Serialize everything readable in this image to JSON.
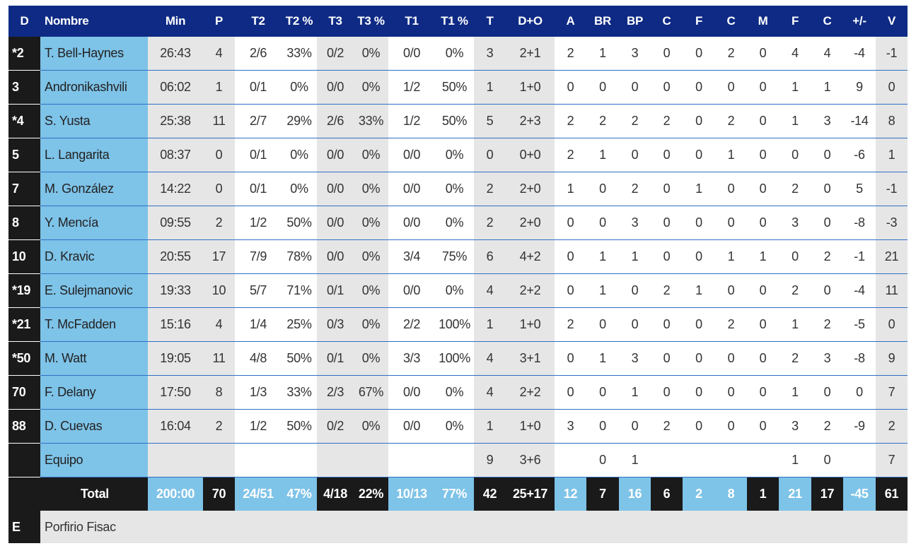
{
  "headers": [
    "D",
    "Nombre",
    "Min",
    "P",
    "T2",
    "T2 %",
    "T3",
    "T3 %",
    "T1",
    "T1 %",
    "T",
    "D+O",
    "A",
    "BR",
    "BP",
    "C",
    "F",
    "C",
    "M",
    "F",
    "C",
    "+/-",
    "V"
  ],
  "players": [
    [
      "*2",
      "T. Bell-Haynes",
      "26:43",
      "4",
      "2/6",
      "33%",
      "0/2",
      "0%",
      "0/0",
      "0%",
      "3",
      "2+1",
      "2",
      "1",
      "3",
      "0",
      "0",
      "2",
      "0",
      "4",
      "4",
      "-4",
      "-1"
    ],
    [
      "3",
      "Andronikashvili",
      "06:02",
      "1",
      "0/1",
      "0%",
      "0/0",
      "0%",
      "1/2",
      "50%",
      "1",
      "1+0",
      "0",
      "0",
      "0",
      "0",
      "0",
      "0",
      "0",
      "1",
      "1",
      "9",
      "0"
    ],
    [
      "*4",
      "S. Yusta",
      "25:38",
      "11",
      "2/7",
      "29%",
      "2/6",
      "33%",
      "1/2",
      "50%",
      "5",
      "2+3",
      "2",
      "2",
      "2",
      "2",
      "0",
      "2",
      "0",
      "1",
      "3",
      "-14",
      "8"
    ],
    [
      "5",
      "L. Langarita",
      "08:37",
      "0",
      "0/1",
      "0%",
      "0/0",
      "0%",
      "0/0",
      "0%",
      "0",
      "0+0",
      "2",
      "1",
      "0",
      "0",
      "0",
      "1",
      "0",
      "0",
      "0",
      "-6",
      "1"
    ],
    [
      "7",
      "M. González",
      "14:22",
      "0",
      "0/1",
      "0%",
      "0/0",
      "0%",
      "0/0",
      "0%",
      "2",
      "2+0",
      "1",
      "0",
      "2",
      "0",
      "1",
      "0",
      "0",
      "2",
      "0",
      "5",
      "-1"
    ],
    [
      "8",
      "Y. Mencía",
      "09:55",
      "2",
      "1/2",
      "50%",
      "0/0",
      "0%",
      "0/0",
      "0%",
      "2",
      "2+0",
      "0",
      "0",
      "3",
      "0",
      "0",
      "0",
      "0",
      "3",
      "0",
      "-8",
      "-3"
    ],
    [
      "10",
      "D. Kravic",
      "20:55",
      "17",
      "7/9",
      "78%",
      "0/0",
      "0%",
      "3/4",
      "75%",
      "6",
      "4+2",
      "0",
      "1",
      "1",
      "0",
      "0",
      "1",
      "1",
      "0",
      "2",
      "-1",
      "21"
    ],
    [
      "*19",
      "E. Sulejmanovic",
      "19:33",
      "10",
      "5/7",
      "71%",
      "0/1",
      "0%",
      "0/0",
      "0%",
      "4",
      "2+2",
      "0",
      "1",
      "0",
      "2",
      "1",
      "0",
      "0",
      "2",
      "0",
      "-4",
      "11"
    ],
    [
      "*21",
      "T. McFadden",
      "15:16",
      "4",
      "1/4",
      "25%",
      "0/3",
      "0%",
      "2/2",
      "100%",
      "1",
      "1+0",
      "2",
      "0",
      "0",
      "0",
      "0",
      "2",
      "0",
      "1",
      "2",
      "-5",
      "0"
    ],
    [
      "*50",
      "M. Watt",
      "19:05",
      "11",
      "4/8",
      "50%",
      "0/1",
      "0%",
      "3/3",
      "100%",
      "4",
      "3+1",
      "0",
      "1",
      "3",
      "0",
      "0",
      "0",
      "0",
      "2",
      "3",
      "-8",
      "9"
    ],
    [
      "70",
      "F. Delany",
      "17:50",
      "8",
      "1/3",
      "33%",
      "2/3",
      "67%",
      "0/0",
      "0%",
      "4",
      "2+2",
      "0",
      "0",
      "1",
      "0",
      "0",
      "0",
      "0",
      "1",
      "0",
      "0",
      "7"
    ],
    [
      "88",
      "D. Cuevas",
      "16:04",
      "2",
      "1/2",
      "50%",
      "0/2",
      "0%",
      "0/0",
      "0%",
      "1",
      "1+0",
      "3",
      "0",
      "0",
      "2",
      "0",
      "0",
      "0",
      "3",
      "2",
      "-9",
      "2"
    ]
  ],
  "team_row": [
    "",
    "Equipo",
    "",
    "",
    "",
    "",
    "",
    "",
    "",
    "",
    "9",
    "3+6",
    "",
    "0",
    "1",
    "",
    "",
    "",
    "",
    "1",
    "0",
    "",
    "7"
  ],
  "total_label": "Total",
  "totals": [
    "200:00",
    "70",
    "24/51",
    "47%",
    "4/18",
    "22%",
    "10/13",
    "77%",
    "42",
    "25+17",
    "12",
    "7",
    "16",
    "6",
    "2",
    "8",
    "1",
    "21",
    "17",
    "-45",
    "61"
  ],
  "coach": {
    "label": "E",
    "name": "Porfirio Fisac"
  },
  "colors": {
    "header_bg": "#0e2a84",
    "name_bg": "#7ec3e8",
    "alt_bg": "#e6e6e6",
    "dark_bg": "#1a1a1a",
    "row_border": "#2f6fc4"
  }
}
